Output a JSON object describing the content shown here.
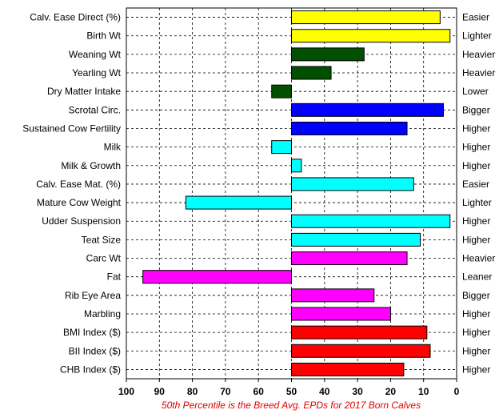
{
  "chart_data": {
    "type": "bar",
    "orientation": "horizontal",
    "x_axis": {
      "reversed": true,
      "xlim": [
        0,
        100
      ],
      "ticks": [
        100,
        90,
        80,
        70,
        60,
        50,
        40,
        30,
        20,
        10,
        0
      ]
    },
    "baseline": 50,
    "grid": true,
    "caption": "50th Percentile is the Breed Avg. EPDs for 2017 Born Calves",
    "categories": [
      {
        "label": "Calv. Ease Direct (%)",
        "value": 5,
        "direction": "Easier",
        "color": "#ffff00"
      },
      {
        "label": "Birth Wt",
        "value": 2,
        "direction": "Lighter",
        "color": "#ffff00"
      },
      {
        "label": "Weaning Wt",
        "value": 28,
        "direction": "Heavier",
        "color": "#005000"
      },
      {
        "label": "Yearling Wt",
        "value": 38,
        "direction": "Heavier",
        "color": "#005000"
      },
      {
        "label": "Dry Matter Intake",
        "value": 56,
        "direction": "Lower",
        "color": "#005000"
      },
      {
        "label": "Scrotal Circ.",
        "value": 4,
        "direction": "Bigger",
        "color": "#0000ff"
      },
      {
        "label": "Sustained Cow Fertility",
        "value": 15,
        "direction": "Higher",
        "color": "#0000ff"
      },
      {
        "label": "Milk",
        "value": 56,
        "direction": "Higher",
        "color": "#00ffff"
      },
      {
        "label": "Milk & Growth",
        "value": 47,
        "direction": "Higher",
        "color": "#00ffff"
      },
      {
        "label": "Calv. Ease Mat. (%)",
        "value": 13,
        "direction": "Easier",
        "color": "#00ffff"
      },
      {
        "label": "Mature Cow Weight",
        "value": 82,
        "direction": "Lighter",
        "color": "#00ffff"
      },
      {
        "label": "Udder Suspension",
        "value": 2,
        "direction": "Higher",
        "color": "#00ffff"
      },
      {
        "label": "Teat Size",
        "value": 11,
        "direction": "Higher",
        "color": "#00ffff"
      },
      {
        "label": "Carc Wt",
        "value": 15,
        "direction": "Heavier",
        "color": "#ff00ff"
      },
      {
        "label": "Fat",
        "value": 95,
        "direction": "Leaner",
        "color": "#ff00ff"
      },
      {
        "label": "Rib Eye Area",
        "value": 25,
        "direction": "Bigger",
        "color": "#ff00ff"
      },
      {
        "label": "Marbling",
        "value": 20,
        "direction": "Higher",
        "color": "#ff00ff"
      },
      {
        "label": "BMI Index ($)",
        "value": 9,
        "direction": "Higher",
        "color": "#ff0000"
      },
      {
        "label": "BII Index ($)",
        "value": 8,
        "direction": "Higher",
        "color": "#ff0000"
      },
      {
        "label": "CHB Index ($)",
        "value": 16,
        "direction": "Higher",
        "color": "#ff0000"
      }
    ]
  }
}
